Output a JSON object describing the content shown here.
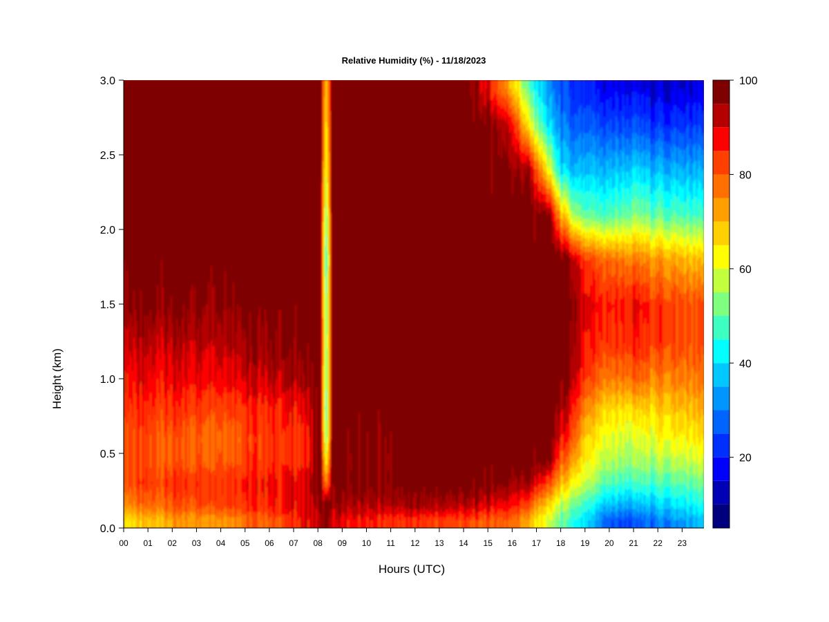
{
  "chart_data": {
    "type": "heatmap",
    "title": "Relative Humidity (%) - 11/18/2023",
    "xlabel": "Hours (UTC)",
    "ylabel": "Height (km)",
    "x_unit": "hour UTC",
    "xlim": [
      0,
      23.9
    ],
    "ylim": [
      0,
      3.0
    ],
    "x_ticks": [
      "00",
      "01",
      "02",
      "03",
      "04",
      "05",
      "06",
      "07",
      "08",
      "09",
      "10",
      "11",
      "12",
      "13",
      "14",
      "15",
      "16",
      "17",
      "18",
      "19",
      "20",
      "21",
      "22",
      "23"
    ],
    "y_ticks": [
      "0.0",
      "0.5",
      "1.0",
      "1.5",
      "2.0",
      "2.5",
      "3.0"
    ],
    "colorbar": {
      "label": "",
      "range": [
        5,
        100
      ],
      "levels": [
        5,
        10,
        15,
        20,
        25,
        30,
        35,
        40,
        45,
        50,
        55,
        60,
        65,
        70,
        75,
        80,
        85,
        90,
        95,
        100
      ],
      "ticks": [
        "20",
        "40",
        "60",
        "80",
        "100"
      ],
      "colors": [
        "#00007f",
        "#0000b4",
        "#0000ff",
        "#0030ff",
        "#0064ff",
        "#0096ff",
        "#00c8ff",
        "#00ffff",
        "#3dffc2",
        "#7fff7f",
        "#c2ff3d",
        "#ffff00",
        "#ffd000",
        "#ffa000",
        "#ff7000",
        "#ff4000",
        "#ff0000",
        "#b40000",
        "#7f0000"
      ]
    },
    "heights_km": [
      0.05,
      0.15,
      0.3,
      0.45,
      0.6,
      0.8,
      1.0,
      1.25,
      1.5,
      1.8,
      2.1,
      2.4,
      2.7,
      2.95
    ],
    "profiles": [
      {
        "hour": 0.0,
        "rh": [
          65,
          75,
          82,
          82,
          82,
          85,
          88,
          92,
          97,
          99,
          99,
          99,
          99,
          99
        ]
      },
      {
        "hour": 2.0,
        "rh": [
          72,
          80,
          84,
          80,
          80,
          84,
          88,
          92,
          97,
          99,
          99,
          99,
          99,
          99
        ]
      },
      {
        "hour": 4.0,
        "rh": [
          75,
          84,
          86,
          82,
          80,
          84,
          90,
          94,
          98,
          99,
          99,
          99,
          99,
          99
        ]
      },
      {
        "hour": 6.0,
        "rh": [
          80,
          86,
          88,
          84,
          84,
          86,
          92,
          96,
          99,
          99,
          99,
          99,
          99,
          99
        ]
      },
      {
        "hour": 7.5,
        "rh": [
          88,
          90,
          90,
          86,
          86,
          88,
          95,
          99,
          99,
          99,
          99,
          99,
          99,
          99
        ]
      },
      {
        "hour": 8.1,
        "rh": [
          92,
          94,
          99,
          99,
          99,
          99,
          99,
          99,
          99,
          99,
          99,
          99,
          99,
          99
        ]
      },
      {
        "hour": 8.35,
        "rh": [
          95,
          99,
          72,
          58,
          48,
          42,
          46,
          48,
          46,
          40,
          48,
          56,
          60,
          64
        ]
      },
      {
        "hour": 8.6,
        "rh": [
          90,
          95,
          99,
          99,
          99,
          99,
          99,
          99,
          99,
          99,
          99,
          99,
          99,
          99
        ]
      },
      {
        "hour": 10.0,
        "rh": [
          86,
          92,
          97,
          96,
          97,
          99,
          99,
          99,
          99,
          99,
          99,
          99,
          99,
          99
        ]
      },
      {
        "hour": 12.0,
        "rh": [
          84,
          94,
          99,
          99,
          99,
          99,
          99,
          99,
          99,
          99,
          99,
          99,
          99,
          99
        ]
      },
      {
        "hour": 14.0,
        "rh": [
          82,
          92,
          99,
          99,
          99,
          99,
          99,
          99,
          99,
          99,
          99,
          99,
          99,
          99
        ]
      },
      {
        "hour": 15.0,
        "rh": [
          80,
          90,
          98,
          99,
          99,
          99,
          99,
          99,
          99,
          99,
          99,
          99,
          99,
          88
        ]
      },
      {
        "hour": 16.0,
        "rh": [
          80,
          88,
          96,
          99,
          99,
          99,
          99,
          99,
          99,
          99,
          99,
          97,
          90,
          70
        ]
      },
      {
        "hour": 16.7,
        "rh": [
          70,
          80,
          94,
          99,
          99,
          99,
          99,
          99,
          99,
          99,
          99,
          94,
          62,
          48
        ]
      },
      {
        "hour": 17.5,
        "rh": [
          58,
          66,
          82,
          97,
          99,
          99,
          99,
          99,
          99,
          99,
          97,
          62,
          40,
          32
        ]
      },
      {
        "hour": 18.0,
        "rh": [
          50,
          56,
          70,
          80,
          88,
          94,
          99,
          99,
          99,
          99,
          72,
          40,
          30,
          25
        ]
      },
      {
        "hour": 18.5,
        "rh": [
          44,
          50,
          62,
          72,
          80,
          86,
          92,
          95,
          96,
          92,
          55,
          35,
          25,
          20
        ]
      },
      {
        "hour": 19.0,
        "rh": [
          38,
          44,
          56,
          62,
          66,
          74,
          82,
          86,
          88,
          82,
          48,
          35,
          25,
          18
        ]
      },
      {
        "hour": 20.0,
        "rh": [
          26,
          36,
          48,
          56,
          60,
          66,
          76,
          84,
          86,
          78,
          48,
          36,
          24,
          16
        ]
      },
      {
        "hour": 21.0,
        "rh": [
          24,
          34,
          46,
          54,
          58,
          66,
          78,
          86,
          88,
          76,
          52,
          38,
          24,
          16
        ]
      },
      {
        "hour": 22.0,
        "rh": [
          30,
          38,
          48,
          56,
          62,
          68,
          76,
          84,
          84,
          74,
          50,
          36,
          22,
          14
        ]
      },
      {
        "hour": 23.9,
        "rh": [
          36,
          42,
          50,
          58,
          64,
          70,
          76,
          80,
          80,
          68,
          46,
          34,
          22,
          14
        ]
      }
    ]
  }
}
